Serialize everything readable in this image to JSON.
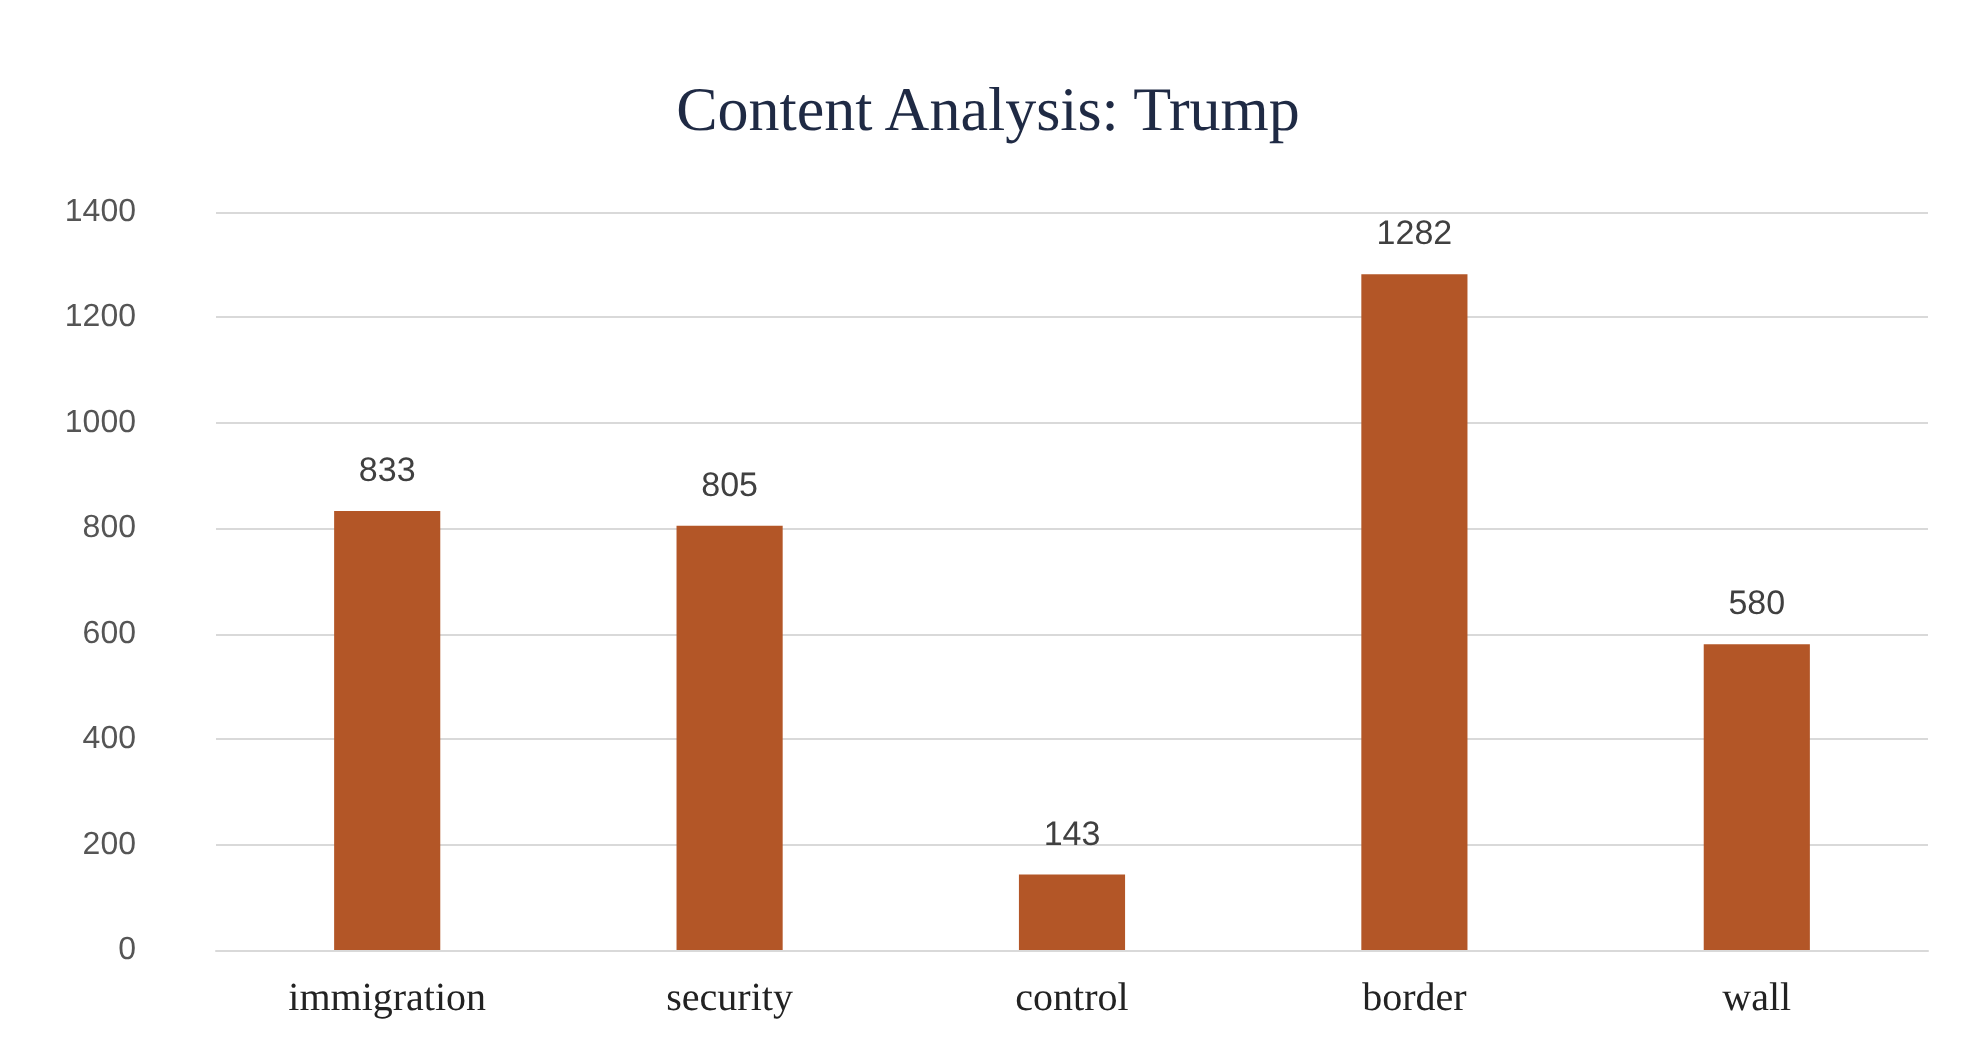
{
  "chart_data": {
    "type": "bar",
    "title": "Content Analysis: Trump",
    "categories": [
      "immigration",
      "security",
      "control",
      "border",
      "wall"
    ],
    "values": [
      833,
      805,
      143,
      1282,
      580
    ],
    "color": "#b35627",
    "ylim": [
      0,
      1400
    ],
    "yticks": [
      0,
      200,
      400,
      600,
      800,
      1000,
      1200,
      1400
    ],
    "grid": "y",
    "data_labels": true
  }
}
